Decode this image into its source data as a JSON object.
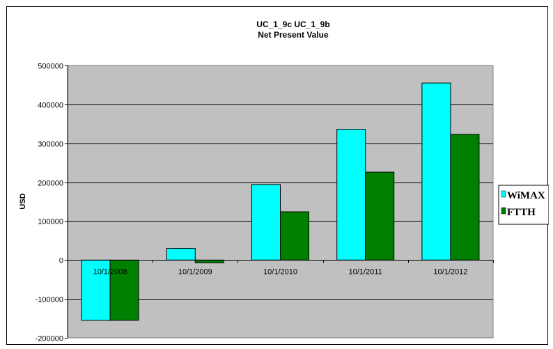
{
  "chart_data": {
    "type": "bar",
    "title": "UC_1_9c UC_1_9b",
    "subtitle": "Net Present Value",
    "xlabel": "",
    "ylabel": "USD",
    "categories": [
      "10/1/2008",
      "10/1/2009",
      "10/1/2010",
      "10/1/2011",
      "10/1/2012"
    ],
    "series": [
      {
        "name": "WiMAX",
        "color": "#00FFFF",
        "values": [
          -155000,
          30000,
          194000,
          336000,
          455000
        ]
      },
      {
        "name": "FTTH",
        "color": "#008000",
        "values": [
          -155000,
          -7000,
          124000,
          226000,
          323000
        ]
      }
    ],
    "ylim": [
      -200000,
      500000
    ],
    "yticks": [
      -200000,
      -100000,
      0,
      100000,
      200000,
      300000,
      400000,
      500000
    ],
    "ytick_labels": [
      "-200000",
      "-100000",
      "0",
      "100000",
      "200000",
      "300000",
      "400000",
      "500000"
    ],
    "grid": true,
    "plot_background": "#C0C0C0",
    "legend_position": "right"
  }
}
